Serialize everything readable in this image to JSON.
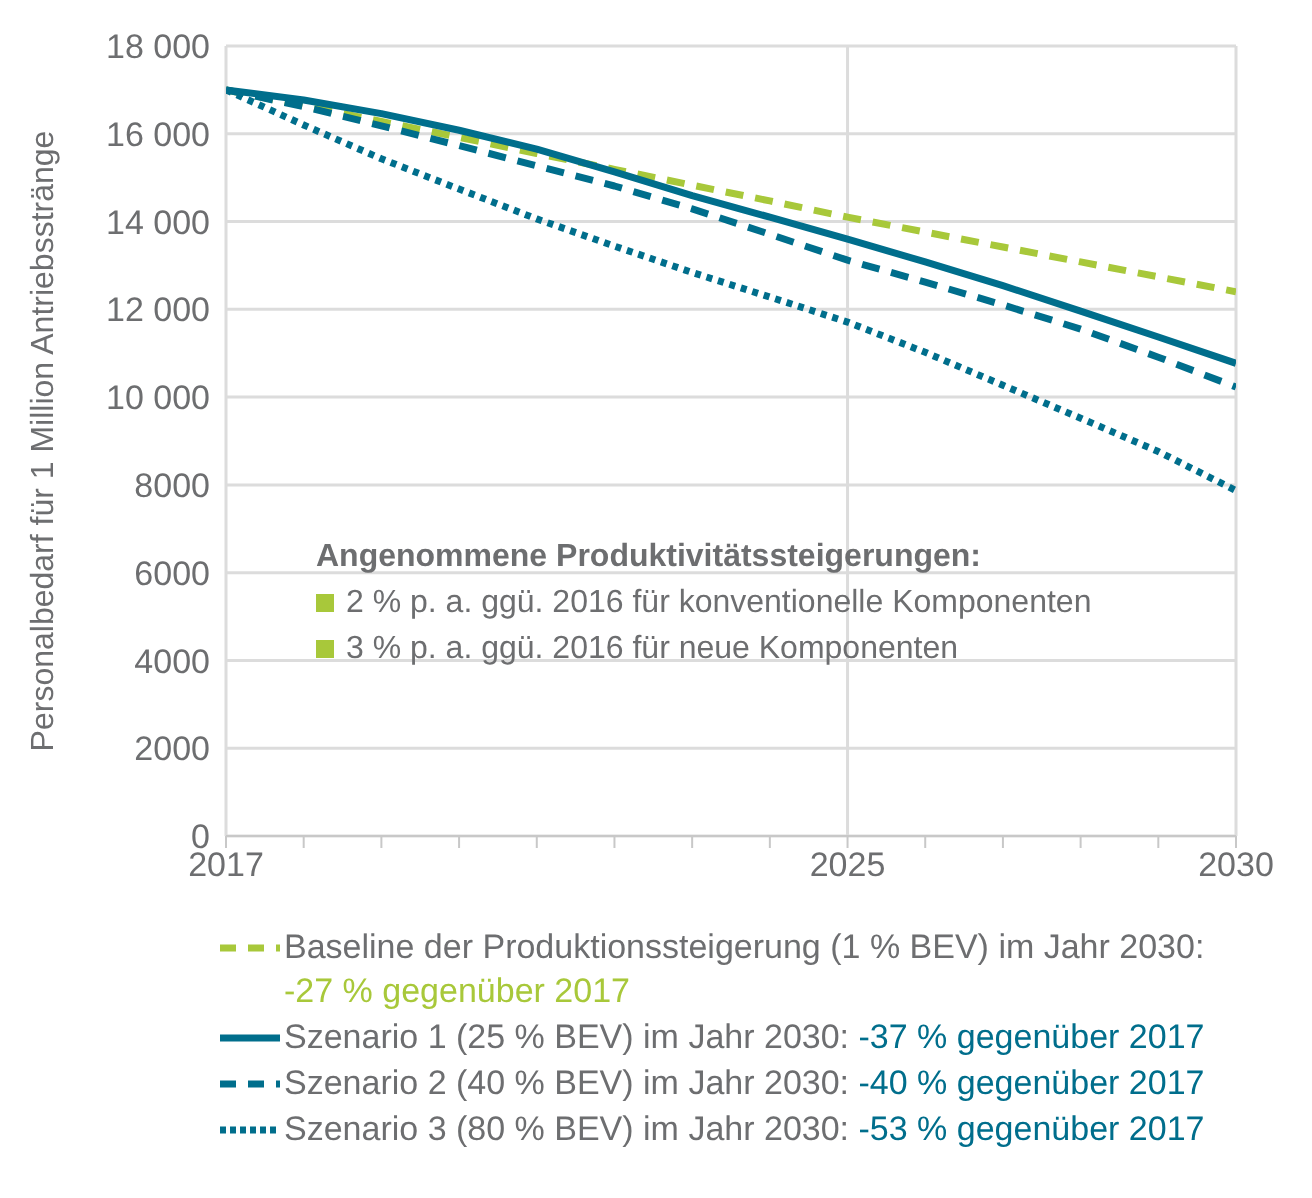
{
  "chart_data": {
    "type": "line",
    "ylabel": "Personalbedarf für 1 Million Antriebsstränge",
    "x": [
      2017,
      2018,
      2019,
      2020,
      2021,
      2022,
      2023,
      2024,
      2025,
      2026,
      2027,
      2028,
      2029,
      2030
    ],
    "xlim": [
      2017,
      2030
    ],
    "xticks": [
      2017,
      {
        "value": 2018,
        "label": null
      },
      {
        "value": 2019,
        "label": null
      },
      {
        "value": 2020,
        "label": null
      },
      {
        "value": 2021,
        "label": null
      },
      {
        "value": 2022,
        "label": null
      },
      {
        "value": 2023,
        "label": null
      },
      {
        "value": 2024,
        "label": null
      },
      2025,
      {
        "value": 2026,
        "label": null
      },
      {
        "value": 2027,
        "label": null
      },
      {
        "value": 2028,
        "label": null
      },
      {
        "value": 2029,
        "label": null
      },
      2030
    ],
    "ylim": [
      0,
      18000
    ],
    "yticks": [
      0,
      2000,
      4000,
      6000,
      8000,
      {
        "value": 10000,
        "label": "10 000"
      },
      {
        "value": 12000,
        "label": "12 000"
      },
      {
        "value": 14000,
        "label": "14 000"
      },
      {
        "value": 16000,
        "label": "16 000"
      },
      {
        "value": 18000,
        "label": "18 000"
      }
    ],
    "grid": true,
    "legend": "bottom",
    "marker": "none",
    "series": [
      {
        "name": "Baseline der Produktionssteigerung (1 % BEV) im Jahr 2030: -27 % gegenüber 2017",
        "color": "#a8c83a",
        "line_style": "dashed",
        "values": [
          17000,
          16640,
          16280,
          15920,
          15550,
          15190,
          14830,
          14470,
          14100,
          13760,
          13420,
          13080,
          12740,
          12400
        ]
      },
      {
        "name": "Szenario 1 (25 % BEV) im Jahr 2030: -37 % gegenüber 2017",
        "color": "#006e8c",
        "line_style": "solid",
        "values": [
          17000,
          16770,
          16460,
          16080,
          15650,
          15130,
          14590,
          14100,
          13600,
          13080,
          12540,
          11960,
          11370,
          10770
        ]
      },
      {
        "name": "Szenario 2 (40 % BEV) im Jahr 2030: -40 % gegenüber 2017",
        "color": "#006e8c",
        "line_style": "dashed",
        "values": [
          17000,
          16620,
          16180,
          15730,
          15270,
          14810,
          14290,
          13710,
          13120,
          12620,
          12100,
          11550,
          10910,
          10230
        ]
      },
      {
        "name": "Szenario 3 (80 % BEV) im Jahr 2030: -53 % gegenüber 2017",
        "color": "#006e8c",
        "line_style": "dotted",
        "values": [
          17000,
          16200,
          15430,
          14740,
          14060,
          13440,
          12840,
          12280,
          11710,
          11020,
          10270,
          9520,
          8760,
          7870
        ]
      }
    ],
    "annotations": [
      "Angenommene Produktivitätssteigerungen:",
      "2 % p. a. ggü. 2016 für konventionelle Komponenten",
      "3 % p. a. ggü. 2016 für neue Komponenten"
    ]
  }
}
